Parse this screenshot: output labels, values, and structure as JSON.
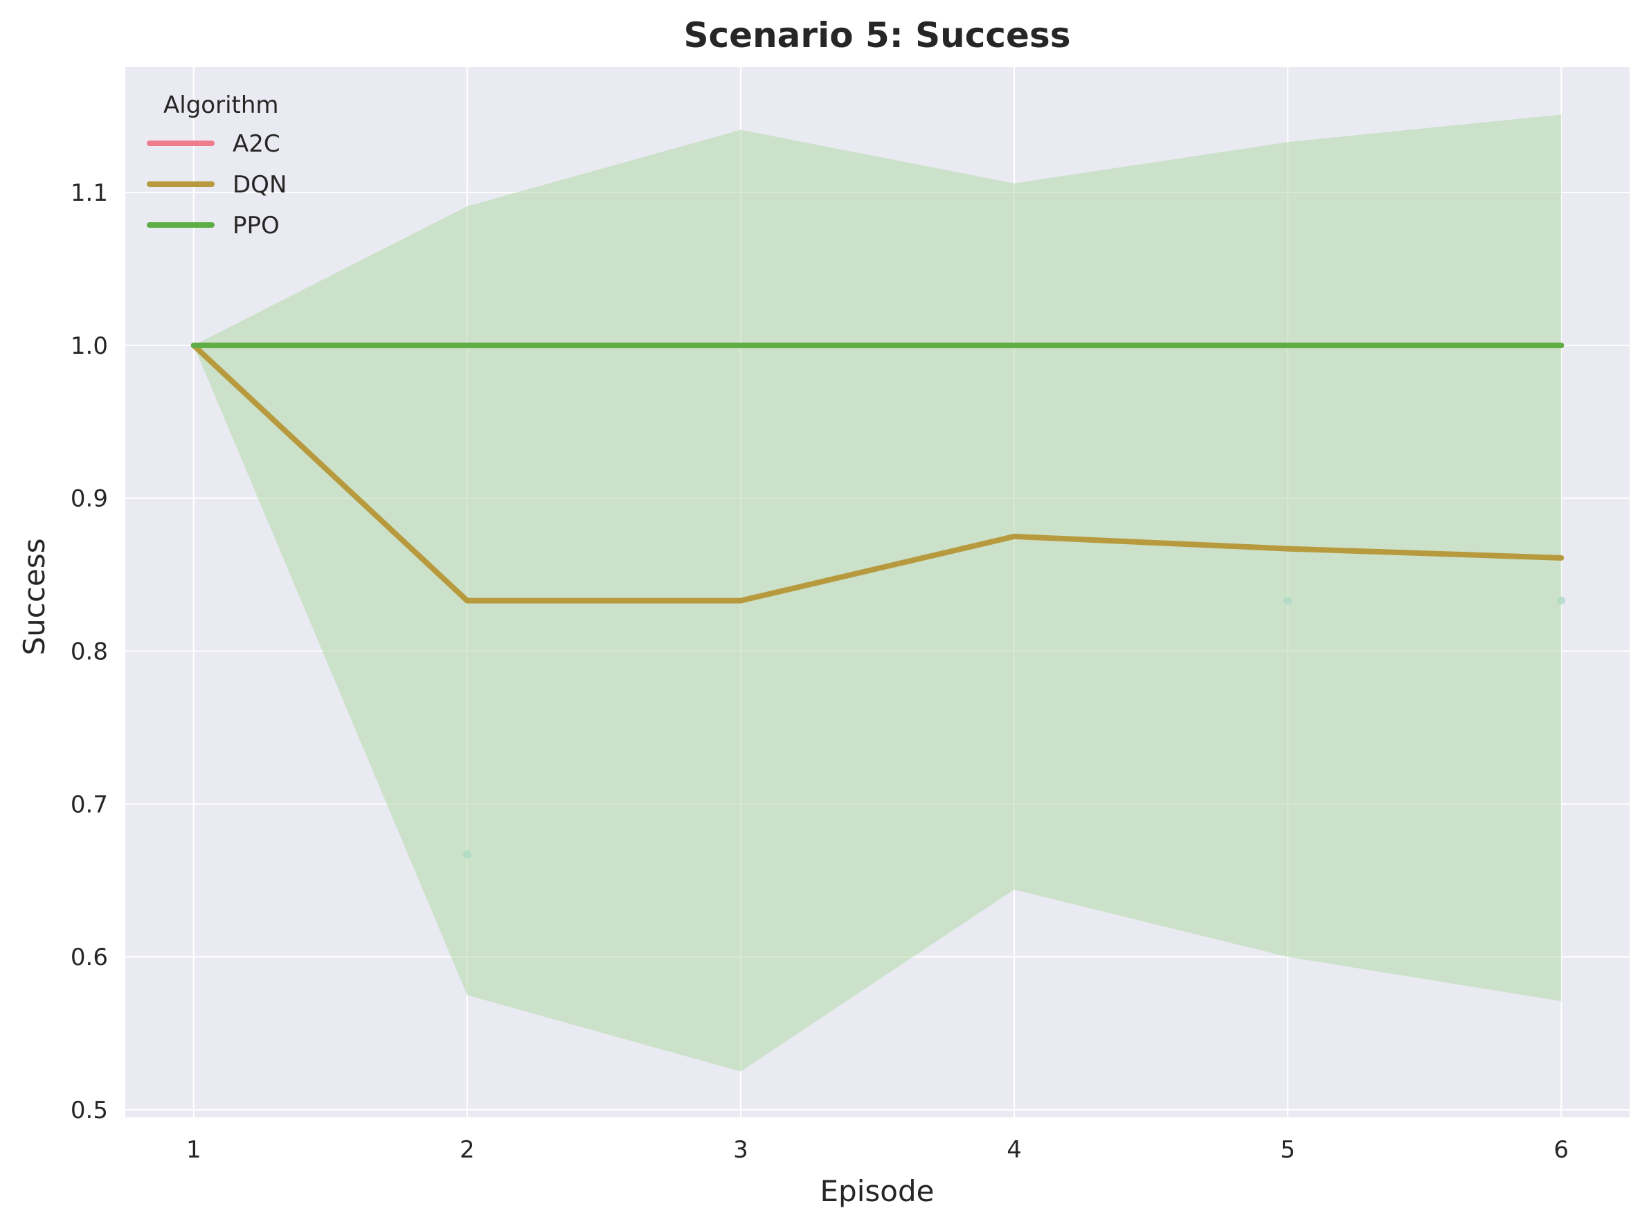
{
  "chart_data": {
    "type": "line",
    "title": "Scenario 5: Success",
    "xlabel": "Episode",
    "ylabel": "Success",
    "x": [
      1,
      2,
      3,
      4,
      5,
      6
    ],
    "xlim": [
      0.75,
      6.25
    ],
    "ylim": [
      0.495,
      1.182
    ],
    "xticks": [
      1,
      2,
      3,
      4,
      5,
      6
    ],
    "yticks": [
      0.5,
      0.6,
      0.7,
      0.8,
      0.9,
      1.0,
      1.1
    ],
    "ytick_labels": [
      "0.5",
      "0.6",
      "0.7",
      "0.8",
      "0.9",
      "1.0",
      "1.1"
    ],
    "grid": true,
    "legend_title": "Algorithm",
    "legend_position": "top-left",
    "series": [
      {
        "name": "A2C",
        "color": "#f07b8c",
        "values": [
          1.0,
          1.0,
          1.0,
          1.0,
          1.0,
          1.0
        ]
      },
      {
        "name": "DQN",
        "color": "#b89a3e",
        "values": [
          1.0,
          0.833,
          0.833,
          0.875,
          0.867,
          0.861
        ]
      },
      {
        "name": "PPO",
        "color": "#5fae45",
        "values": [
          1.0,
          1.0,
          1.0,
          1.0,
          1.0,
          1.0
        ]
      }
    ],
    "band": {
      "series": "DQN",
      "color": "#b3d9a8",
      "upper": [
        1.0,
        1.091,
        1.141,
        1.106,
        1.133,
        1.151
      ],
      "lower": [
        1.0,
        0.575,
        0.525,
        0.644,
        0.6,
        0.571
      ]
    },
    "scatter_points": [
      {
        "x": 2,
        "y": 0.667
      },
      {
        "x": 5,
        "y": 0.833
      },
      {
        "x": 6,
        "y": 0.833
      }
    ]
  },
  "colors": {
    "plot_background": "#eaeaf2",
    "grid": "#ffffff"
  }
}
